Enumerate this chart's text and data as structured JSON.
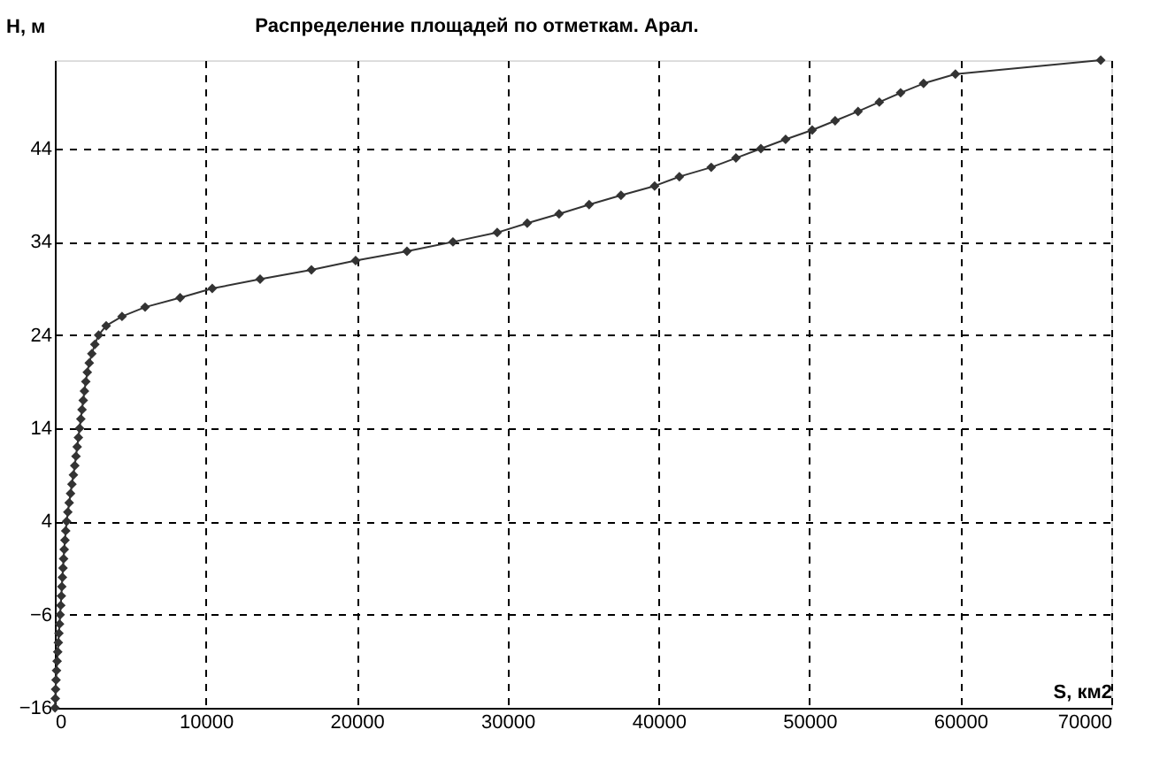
{
  "chart_data": {
    "type": "line",
    "title": "Распределение площадей по отметкам. Арал.",
    "xlabel": "S, км2",
    "ylabel": "H, м",
    "x": [
      10,
      30,
      50,
      80,
      110,
      150,
      190,
      230,
      270,
      310,
      350,
      390,
      430,
      460,
      500,
      540,
      580,
      620,
      670,
      720,
      780,
      860,
      950,
      1040,
      1130,
      1230,
      1320,
      1400,
      1480,
      1560,
      1640,
      1720,
      1800,
      1880,
      1960,
      2050,
      2150,
      2280,
      2450,
      2650,
      2900,
      3400,
      4450,
      5980,
      8300,
      10430,
      13600,
      17000,
      19930,
      23330,
      26380,
      29310,
      31300,
      33410,
      35400,
      37510,
      39740,
      41380,
      43490,
      45130,
      46780,
      48420,
      50180,
      51700,
      53220,
      54630,
      56040,
      57560,
      59670,
      69300
    ],
    "series": [
      {
        "color": "#333333",
        "values": [
          -16,
          -15,
          -14,
          -13,
          -12,
          -11,
          -10,
          -9,
          -8,
          -7,
          -6,
          -5,
          -4,
          -3,
          -2,
          -1,
          0,
          1,
          2,
          3,
          4,
          5,
          6,
          7,
          8,
          9,
          10,
          11,
          12,
          13,
          14,
          15,
          16,
          17,
          18,
          19,
          20,
          21,
          22,
          23,
          24,
          25,
          26,
          27,
          28,
          29,
          30,
          31,
          32,
          33,
          34,
          35,
          36,
          37,
          38,
          39,
          40,
          41,
          42,
          43,
          44,
          45,
          46,
          47,
          48,
          49,
          50,
          51,
          52,
          53.5
        ]
      }
    ],
    "xlim": [
      0,
      70000
    ],
    "xticks": [
      0,
      10000,
      20000,
      30000,
      40000,
      50000,
      60000,
      70000
    ],
    "ylim": [
      -16,
      53.5
    ],
    "yticks": [
      -16,
      -6,
      4,
      14,
      24,
      34,
      44
    ],
    "grid": true,
    "marker": "diamond",
    "line_style": "solid"
  }
}
